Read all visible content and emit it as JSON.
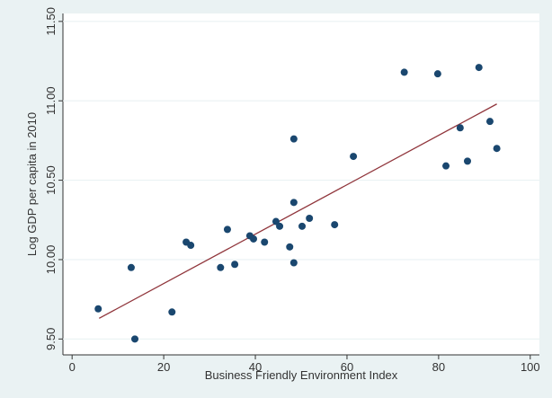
{
  "chart_data": {
    "type": "scatter",
    "x_label": "Business Friendly Environment Index",
    "y_label": "Log GDP per capita in 2010",
    "xlim": [
      -2,
      102
    ],
    "ylim": [
      9.4,
      11.55
    ],
    "xticks": [
      0,
      20,
      40,
      60,
      80,
      100
    ],
    "yticks": [
      {
        "value": 9.5,
        "label": "9.50"
      },
      {
        "value": 10,
        "label": "10.00"
      },
      {
        "value": 10.5,
        "label": "10.50"
      },
      {
        "value": 11,
        "label": "11.00"
      },
      {
        "value": 11.5,
        "label": "11.50"
      }
    ],
    "grid": true,
    "series": [
      {
        "color": "#1a476f",
        "x": [
          5.7,
          12.9,
          13.7,
          21.8,
          24.9,
          25.9,
          32.4,
          33.9,
          35.5,
          38.8,
          39.6,
          42.0,
          44.5,
          45.3,
          47.5,
          48.4,
          48.4,
          48.4,
          50.2,
          51.8,
          57.3,
          61.4,
          72.5,
          79.8,
          81.6,
          84.7,
          86.3,
          88.8,
          91.2,
          92.7
        ],
        "values": [
          9.69,
          9.95,
          9.5,
          9.67,
          10.11,
          10.09,
          9.95,
          10.19,
          9.97,
          10.15,
          10.13,
          10.11,
          10.24,
          10.21,
          10.08,
          10.36,
          10.76,
          9.98,
          10.21,
          10.26,
          10.22,
          10.65,
          11.18,
          11.17,
          10.59,
          10.83,
          10.62,
          11.21,
          10.87,
          10.7
        ]
      }
    ],
    "fit_line": {
      "color": "#90353b",
      "x": [
        5.9,
        92.7
      ],
      "values": [
        9.63,
        10.98
      ]
    }
  }
}
